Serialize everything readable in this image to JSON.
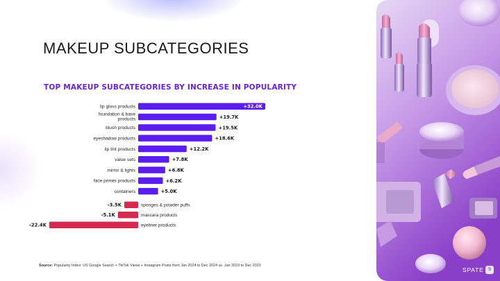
{
  "slide": {
    "title": "MAKEUP SUBCATEGORIES",
    "chart_title": "TOP MAKEUP SUBCATEGORIES BY INCREASE IN POPULARITY",
    "source_label": "Source:",
    "source_text": "Popularity Index: US Google Search + TikTok Views + Instagram Posts from Jan 2024 to Dec 2024 vs. Jan 2023 to Dec 2023",
    "logo": "SPATE",
    "page_number": "9"
  },
  "colors": {
    "accent": "#6a23e6",
    "positive_bar": "#5b1cf0",
    "negative_bar": "#d42a4f"
  },
  "chart_data": {
    "type": "bar",
    "orientation": "horizontal",
    "title": "TOP MAKEUP SUBCATEGORIES BY INCREASE IN POPULARITY",
    "categories": [
      "lip gloss products",
      "foundation & base products",
      "blush products",
      "eyeshadow products",
      "lip tint products",
      "value sets",
      "mirror & lights",
      "face primer products",
      "containers",
      "sponges & powder puffs",
      "mascara products",
      "eyeliner products"
    ],
    "values": [
      32.0,
      19.7,
      19.5,
      18.6,
      12.2,
      7.8,
      6.8,
      6.2,
      5.0,
      -3.5,
      -5.1,
      -22.4
    ],
    "data_labels": [
      "+32.0K",
      "+19.7K",
      "+19.5K",
      "+18.6K",
      "+12.2K",
      "+7.8K",
      "+6.8K",
      "+6.2K",
      "+5.0K",
      "-3.5K",
      "-5.1K",
      "-22.4K"
    ],
    "unit": "K",
    "xlim": [
      -22.4,
      32.0
    ],
    "grid": false,
    "legend": "none"
  }
}
